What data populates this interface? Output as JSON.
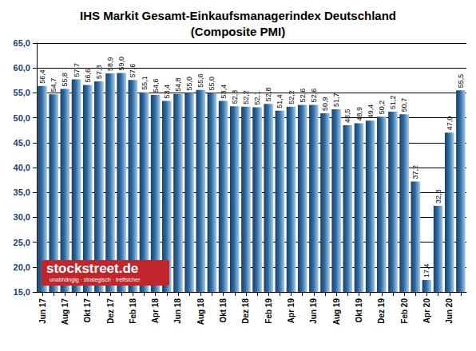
{
  "chart_data": {
    "type": "bar",
    "title": "IHS Markit Gesamt-Einkaufsmanagerindex Deutschland",
    "subtitle": "(Composite PMI)",
    "categories": [
      "Jun 17",
      null,
      "Aug 17",
      null,
      "Okt 17",
      null,
      "Dez 17",
      null,
      "Feb 18",
      null,
      "Apr 18",
      null,
      "Jun 18",
      null,
      "Aug 18",
      null,
      "Okt 18",
      null,
      "Dez 18",
      null,
      "Feb 19",
      null,
      "Apr 19",
      null,
      "Jun 19",
      null,
      "Aug 19",
      null,
      "Okt 19",
      null,
      "Dez 19",
      null,
      "Feb 20",
      null,
      "Apr 20",
      null,
      "Jun 20",
      null
    ],
    "values": [
      56.4,
      54.7,
      55.8,
      57.7,
      56.6,
      57.3,
      58.9,
      59.0,
      57.6,
      55.1,
      54.6,
      53.4,
      54.8,
      55.0,
      55.6,
      55.0,
      53.4,
      52.3,
      52.2,
      52.1,
      52.8,
      51.4,
      52.2,
      52.6,
      52.6,
      50.9,
      51.7,
      48.5,
      48.9,
      49.4,
      50.2,
      51.2,
      50.7,
      37.2,
      17.4,
      32.3,
      47.0,
      55.5
    ],
    "value_labels": [
      "56,4",
      "54,7",
      "55,8",
      "57,7",
      "56,6",
      "57,3",
      "58,9",
      "59,0",
      "57,6",
      "55,1",
      "54,6",
      "53,4",
      "54,8",
      "55,0",
      "55,6",
      "55,0",
      "53,4",
      "52,3",
      "52,2",
      "52,1",
      "52,8",
      "51,4",
      "52,2",
      "52,6",
      "52,6",
      "50,9",
      "51,7",
      "48,5",
      "48,9",
      "49,4",
      "50,2",
      "51,2",
      "50,7",
      "37,2",
      "17,4",
      "32,3",
      "47,0",
      "55,5"
    ],
    "color": "#2e6da4",
    "ylim": [
      15,
      65
    ],
    "yticks": [
      {
        "value": 15,
        "label": "15,0"
      },
      {
        "value": 20,
        "label": "20,0"
      },
      {
        "value": 25,
        "label": "25,0"
      },
      {
        "value": 30,
        "label": "30,0"
      },
      {
        "value": 35,
        "label": "35,0"
      },
      {
        "value": 40,
        "label": "40,0"
      },
      {
        "value": 45,
        "label": "45,0"
      },
      {
        "value": 50,
        "label": "50,0"
      },
      {
        "value": 55,
        "label": "55,0"
      },
      {
        "value": 60,
        "label": "60,0"
      },
      {
        "value": 65,
        "label": "65,0"
      }
    ],
    "grid": true,
    "data_labels": true,
    "annotations": [
      "stockstreet.de",
      "unabhängig · strategisch · treffsicher"
    ]
  }
}
